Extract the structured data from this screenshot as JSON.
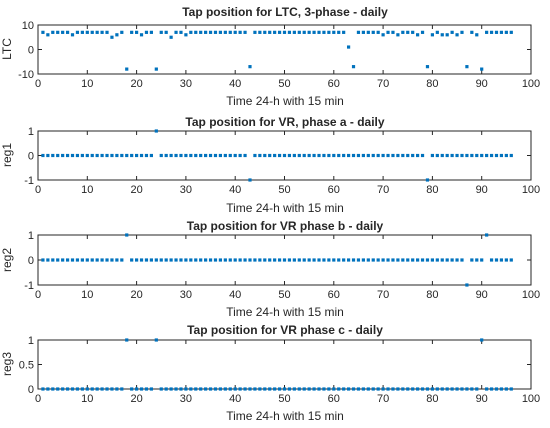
{
  "chart_data": [
    {
      "type": "scatter",
      "title": "Tap position for LTC, 3-phase - daily",
      "xlabel": "Time 24-h with 15 min",
      "ylabel": "LTC",
      "xlim": [
        0,
        100
      ],
      "ylim": [
        -10,
        10
      ],
      "xticks": [
        0,
        10,
        20,
        30,
        40,
        50,
        60,
        70,
        80,
        90,
        100
      ],
      "yticks": [
        -10,
        0,
        10
      ],
      "marker_color": "#0072BD",
      "grid": false,
      "x": [
        1,
        2,
        3,
        4,
        5,
        6,
        7,
        8,
        9,
        10,
        11,
        12,
        13,
        14,
        15,
        16,
        17,
        18,
        19,
        20,
        21,
        22,
        23,
        24,
        25,
        26,
        27,
        28,
        29,
        30,
        31,
        32,
        33,
        34,
        35,
        36,
        37,
        38,
        39,
        40,
        41,
        42,
        43,
        44,
        45,
        46,
        47,
        48,
        49,
        50,
        51,
        52,
        53,
        54,
        55,
        56,
        57,
        58,
        59,
        60,
        61,
        62,
        63,
        64,
        65,
        66,
        67,
        68,
        69,
        70,
        71,
        72,
        73,
        74,
        75,
        76,
        77,
        78,
        79,
        80,
        81,
        82,
        83,
        84,
        85,
        86,
        87,
        88,
        89,
        90,
        91,
        92,
        93,
        94,
        95,
        96
      ],
      "y": [
        7,
        6,
        7,
        7,
        7,
        7,
        6,
        7,
        7,
        7,
        7,
        7,
        7,
        7,
        5,
        6,
        7,
        -8,
        7,
        7,
        6,
        7,
        7,
        -8,
        7,
        7,
        5,
        7,
        7,
        6,
        7,
        7,
        7,
        7,
        7,
        7,
        7,
        7,
        7,
        7,
        7,
        7,
        -7,
        7,
        7,
        7,
        7,
        7,
        7,
        7,
        7,
        7,
        7,
        7,
        7,
        7,
        7,
        7,
        7,
        7,
        7,
        7,
        1,
        -7,
        7,
        7,
        7,
        7,
        7,
        6,
        7,
        7,
        6,
        7,
        7,
        7,
        6,
        7,
        -7,
        6,
        7,
        6,
        6,
        7,
        6,
        7,
        -7,
        7,
        6,
        -8,
        7,
        7,
        7,
        7,
        7,
        7
      ]
    },
    {
      "type": "scatter",
      "title": "Tap position for VR, phase a - daily",
      "xlabel": "Time 24-h with 15 min",
      "ylabel": "reg1",
      "xlim": [
        0,
        100
      ],
      "ylim": [
        -1,
        1
      ],
      "xticks": [
        0,
        10,
        20,
        30,
        40,
        50,
        60,
        70,
        80,
        90,
        100
      ],
      "yticks": [
        -1,
        0,
        1
      ],
      "marker_color": "#0072BD",
      "grid": false,
      "x": [
        1,
        2,
        3,
        4,
        5,
        6,
        7,
        8,
        9,
        10,
        11,
        12,
        13,
        14,
        15,
        16,
        17,
        18,
        19,
        20,
        21,
        22,
        23,
        24,
        25,
        26,
        27,
        28,
        29,
        30,
        31,
        32,
        33,
        34,
        35,
        36,
        37,
        38,
        39,
        40,
        41,
        42,
        43,
        44,
        45,
        46,
        47,
        48,
        49,
        50,
        51,
        52,
        53,
        54,
        55,
        56,
        57,
        58,
        59,
        60,
        61,
        62,
        63,
        64,
        65,
        66,
        67,
        68,
        69,
        70,
        71,
        72,
        73,
        74,
        75,
        76,
        77,
        78,
        79,
        80,
        81,
        82,
        83,
        84,
        85,
        86,
        87,
        88,
        89,
        90,
        91,
        92,
        93,
        94,
        95,
        96
      ],
      "y": [
        0,
        0,
        0,
        0,
        0,
        0,
        0,
        0,
        0,
        0,
        0,
        0,
        0,
        0,
        0,
        0,
        0,
        0,
        0,
        0,
        0,
        0,
        0,
        1,
        0,
        0,
        0,
        0,
        0,
        0,
        0,
        0,
        0,
        0,
        0,
        0,
        0,
        0,
        0,
        0,
        0,
        0,
        -1,
        0,
        0,
        0,
        0,
        0,
        0,
        0,
        0,
        0,
        0,
        0,
        0,
        0,
        0,
        0,
        0,
        0,
        0,
        0,
        0,
        0,
        0,
        0,
        0,
        0,
        0,
        0,
        0,
        0,
        0,
        0,
        0,
        0,
        0,
        0,
        -1,
        0,
        0,
        0,
        0,
        0,
        0,
        0,
        0,
        0,
        0,
        0,
        0,
        0,
        0,
        0,
        0,
        0
      ]
    },
    {
      "type": "scatter",
      "title": "Tap position for VR phase b - daily",
      "xlabel": "Time 24-h with 15 min",
      "ylabel": "reg2",
      "xlim": [
        0,
        100
      ],
      "ylim": [
        -1,
        1
      ],
      "xticks": [
        0,
        10,
        20,
        30,
        40,
        50,
        60,
        70,
        80,
        90,
        100
      ],
      "yticks": [
        -1,
        0,
        1
      ],
      "marker_color": "#0072BD",
      "grid": false,
      "x": [
        1,
        2,
        3,
        4,
        5,
        6,
        7,
        8,
        9,
        10,
        11,
        12,
        13,
        14,
        15,
        16,
        17,
        18,
        19,
        20,
        21,
        22,
        23,
        24,
        25,
        26,
        27,
        28,
        29,
        30,
        31,
        32,
        33,
        34,
        35,
        36,
        37,
        38,
        39,
        40,
        41,
        42,
        43,
        44,
        45,
        46,
        47,
        48,
        49,
        50,
        51,
        52,
        53,
        54,
        55,
        56,
        57,
        58,
        59,
        60,
        61,
        62,
        63,
        64,
        65,
        66,
        67,
        68,
        69,
        70,
        71,
        72,
        73,
        74,
        75,
        76,
        77,
        78,
        79,
        80,
        81,
        82,
        83,
        84,
        85,
        86,
        87,
        88,
        89,
        90,
        91,
        92,
        93,
        94,
        95,
        96
      ],
      "y": [
        0,
        0,
        0,
        0,
        0,
        0,
        0,
        0,
        0,
        0,
        0,
        0,
        0,
        0,
        0,
        0,
        0,
        1,
        0,
        0,
        0,
        0,
        0,
        0,
        0,
        0,
        0,
        0,
        0,
        0,
        0,
        0,
        0,
        0,
        0,
        0,
        0,
        0,
        0,
        0,
        0,
        0,
        0,
        0,
        0,
        0,
        0,
        0,
        0,
        0,
        0,
        0,
        0,
        0,
        0,
        0,
        0,
        0,
        0,
        0,
        0,
        0,
        0,
        0,
        0,
        0,
        0,
        0,
        0,
        0,
        0,
        0,
        0,
        0,
        0,
        0,
        0,
        0,
        0,
        0,
        0,
        0,
        0,
        0,
        0,
        0,
        -1,
        0,
        0,
        0,
        1,
        0,
        0,
        0,
        0,
        0
      ]
    },
    {
      "type": "scatter",
      "title": "Tap position for VR phase c - daily",
      "xlabel": "Time 24-h with 15 min",
      "ylabel": "reg3",
      "xlim": [
        0,
        100
      ],
      "ylim": [
        0,
        1
      ],
      "xticks": [
        0,
        10,
        20,
        30,
        40,
        50,
        60,
        70,
        80,
        90,
        100
      ],
      "yticks": [
        0,
        0.5,
        1
      ],
      "marker_color": "#0072BD",
      "grid": false,
      "x": [
        1,
        2,
        3,
        4,
        5,
        6,
        7,
        8,
        9,
        10,
        11,
        12,
        13,
        14,
        15,
        16,
        17,
        18,
        19,
        20,
        21,
        22,
        23,
        24,
        25,
        26,
        27,
        28,
        29,
        30,
        31,
        32,
        33,
        34,
        35,
        36,
        37,
        38,
        39,
        40,
        41,
        42,
        43,
        44,
        45,
        46,
        47,
        48,
        49,
        50,
        51,
        52,
        53,
        54,
        55,
        56,
        57,
        58,
        59,
        60,
        61,
        62,
        63,
        64,
        65,
        66,
        67,
        68,
        69,
        70,
        71,
        72,
        73,
        74,
        75,
        76,
        77,
        78,
        79,
        80,
        81,
        82,
        83,
        84,
        85,
        86,
        87,
        88,
        89,
        90,
        91,
        92,
        93,
        94,
        95,
        96
      ],
      "y": [
        0,
        0,
        0,
        0,
        0,
        0,
        0,
        0,
        0,
        0,
        0,
        0,
        0,
        0,
        0,
        0,
        0,
        1,
        0,
        0,
        0,
        0,
        0,
        1,
        0,
        0,
        0,
        0,
        0,
        0,
        0,
        0,
        0,
        0,
        0,
        0,
        0,
        0,
        0,
        0,
        0,
        0,
        0,
        0,
        0,
        0,
        0,
        0,
        0,
        0,
        0,
        0,
        0,
        0,
        0,
        0,
        0,
        0,
        0,
        0,
        0,
        0,
        0,
        0,
        0,
        0,
        0,
        0,
        0,
        0,
        0,
        0,
        0,
        0,
        0,
        0,
        0,
        0,
        0,
        0,
        0,
        0,
        0,
        0,
        0,
        0,
        0,
        0,
        0,
        1,
        0,
        0,
        0,
        0,
        0,
        0
      ]
    }
  ]
}
